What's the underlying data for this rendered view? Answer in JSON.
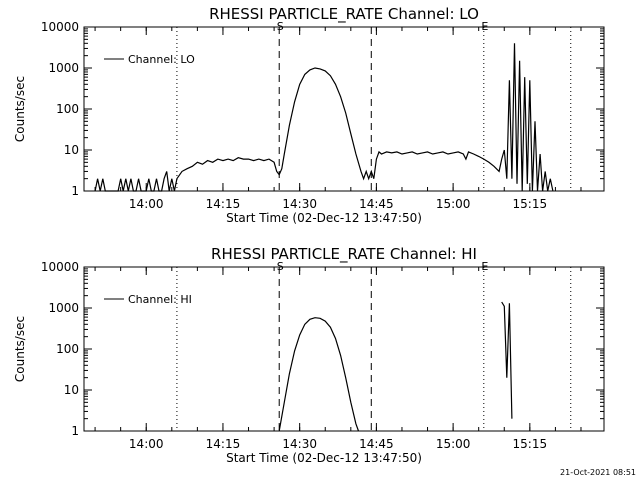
{
  "footer_timestamp": "21-Oct-2021 08:51",
  "chart_data": [
    {
      "type": "line",
      "title": "RHESSI PARTICLE_RATE Channel: LO",
      "xlabel": "Start Time (02-Dec-12 13:47:50)",
      "ylabel": "Counts/sec",
      "yscale": "log",
      "ylim": [
        1,
        10000
      ],
      "xlim": [
        "13:47:50",
        "15:29:30"
      ],
      "x_ticks": [
        "14:00",
        "14:15",
        "14:30",
        "14:45",
        "15:00",
        "15:15"
      ],
      "y_ticks": [
        "1",
        "10",
        "100",
        "1000",
        "10000"
      ],
      "legend": {
        "position": "top-left",
        "entries": [
          "Channel: LO"
        ]
      },
      "markers": [
        {
          "time": "14:06:00",
          "style": "dotted",
          "label": ""
        },
        {
          "time": "14:26:00",
          "style": "dashed",
          "label": "S"
        },
        {
          "time": "14:44:00",
          "style": "dashed",
          "label": ""
        },
        {
          "time": "15:06:00",
          "style": "dotted",
          "label": "E"
        },
        {
          "time": "15:23:00",
          "style": "dotted",
          "label": ""
        }
      ],
      "series": [
        {
          "name": "Channel: LO",
          "points": [
            [
              "13:50:00",
              1
            ],
            [
              "13:50:30",
              2
            ],
            [
              "13:51:00",
              1
            ],
            [
              "13:51:30",
              2
            ],
            [
              "13:52:00",
              1
            ],
            [
              "13:54:30",
              1
            ],
            [
              "13:55:00",
              2
            ],
            [
              "13:55:30",
              1
            ],
            [
              "13:56:00",
              2
            ],
            [
              "13:56:30",
              1
            ],
            [
              "13:57:00",
              2
            ],
            [
              "13:57:30",
              1
            ],
            [
              "13:58:00",
              1
            ],
            [
              "13:58:30",
              2
            ],
            [
              "13:59:00",
              1
            ],
            [
              "14:00:00",
              1
            ],
            [
              "14:00:30",
              2
            ],
            [
              "14:01:00",
              1
            ],
            [
              "14:01:30",
              1
            ],
            [
              "14:02:00",
              2
            ],
            [
              "14:02:30",
              1
            ],
            [
              "14:03:00",
              1
            ],
            [
              "14:03:30",
              2
            ],
            [
              "14:04:00",
              3
            ],
            [
              "14:04:30",
              1
            ],
            [
              "14:05:00",
              2
            ],
            [
              "14:05:30",
              1
            ],
            [
              "14:06:00",
              2
            ],
            [
              "14:07:00",
              3
            ],
            [
              "14:08:00",
              3.5
            ],
            [
              "14:09:00",
              4
            ],
            [
              "14:10:00",
              5
            ],
            [
              "14:11:00",
              4.5
            ],
            [
              "14:12:00",
              5.5
            ],
            [
              "14:13:00",
              5
            ],
            [
              "14:14:00",
              6
            ],
            [
              "14:15:00",
              5.5
            ],
            [
              "14:16:00",
              6
            ],
            [
              "14:17:00",
              5.5
            ],
            [
              "14:18:00",
              6.5
            ],
            [
              "14:19:00",
              6
            ],
            [
              "14:20:00",
              6
            ],
            [
              "14:21:00",
              5.5
            ],
            [
              "14:22:00",
              6
            ],
            [
              "14:23:00",
              5.5
            ],
            [
              "14:24:00",
              6
            ],
            [
              "14:25:00",
              5
            ],
            [
              "14:25:30",
              3
            ],
            [
              "14:26:00",
              2.5
            ],
            [
              "14:26:30",
              3.5
            ],
            [
              "14:27:00",
              8
            ],
            [
              "14:28:00",
              40
            ],
            [
              "14:29:00",
              150
            ],
            [
              "14:30:00",
              400
            ],
            [
              "14:31:00",
              700
            ],
            [
              "14:32:00",
              900
            ],
            [
              "14:33:00",
              1000
            ],
            [
              "14:34:00",
              950
            ],
            [
              "14:35:00",
              850
            ],
            [
              "14:36:00",
              650
            ],
            [
              "14:37:00",
              400
            ],
            [
              "14:38:00",
              200
            ],
            [
              "14:39:00",
              80
            ],
            [
              "14:40:00",
              25
            ],
            [
              "14:41:00",
              8
            ],
            [
              "14:42:00",
              3
            ],
            [
              "14:42:30",
              2
            ],
            [
              "14:43:00",
              3
            ],
            [
              "14:43:30",
              2
            ],
            [
              "14:44:00",
              3
            ],
            [
              "14:44:30",
              2
            ],
            [
              "14:45:00",
              6
            ],
            [
              "14:45:30",
              9
            ],
            [
              "14:46:00",
              8
            ],
            [
              "14:47:00",
              9
            ],
            [
              "14:48:00",
              8.5
            ],
            [
              "14:49:00",
              9
            ],
            [
              "14:50:00",
              8
            ],
            [
              "14:51:00",
              8.5
            ],
            [
              "14:52:00",
              9
            ],
            [
              "14:53:00",
              8
            ],
            [
              "14:54:00",
              8.5
            ],
            [
              "14:55:00",
              9
            ],
            [
              "14:56:00",
              8
            ],
            [
              "14:57:00",
              8.5
            ],
            [
              "14:58:00",
              9
            ],
            [
              "14:59:00",
              8
            ],
            [
              "15:00:00",
              8.5
            ],
            [
              "15:01:00",
              9
            ],
            [
              "15:02:00",
              8
            ],
            [
              "15:02:30",
              6
            ],
            [
              "15:03:00",
              9
            ],
            [
              "15:04:00",
              8
            ],
            [
              "15:05:00",
              7
            ],
            [
              "15:06:00",
              6
            ],
            [
              "15:07:00",
              5
            ],
            [
              "15:08:00",
              4
            ],
            [
              "15:09:00",
              3
            ],
            [
              "15:09:30",
              6
            ],
            [
              "15:10:00",
              10
            ],
            [
              "15:10:30",
              2
            ],
            [
              "15:11:00",
              500
            ],
            [
              "15:11:30",
              2
            ],
            [
              "15:12:00",
              4000
            ],
            [
              "15:12:30",
              1.5
            ],
            [
              "15:13:00",
              1500
            ],
            [
              "15:13:30",
              1
            ],
            [
              "15:14:00",
              600
            ],
            [
              "15:14:30",
              1.5
            ],
            [
              "15:15:00",
              500
            ],
            [
              "15:15:30",
              1
            ],
            [
              "15:16:00",
              50
            ],
            [
              "15:16:30",
              1
            ],
            [
              "15:17:00",
              8
            ],
            [
              "15:17:30",
              1
            ],
            [
              "15:18:00",
              3
            ],
            [
              "15:18:30",
              1
            ],
            [
              "15:19:00",
              2
            ],
            [
              "15:19:30",
              1
            ]
          ]
        }
      ]
    },
    {
      "type": "line",
      "title": "RHESSI PARTICLE_RATE Channel: HI",
      "xlabel": "Start Time (02-Dec-12 13:47:50)",
      "ylabel": "Counts/sec",
      "yscale": "log",
      "ylim": [
        1,
        10000
      ],
      "xlim": [
        "13:47:50",
        "15:29:30"
      ],
      "x_ticks": [
        "14:00",
        "14:15",
        "14:30",
        "14:45",
        "15:00",
        "15:15"
      ],
      "y_ticks": [
        "1",
        "10",
        "100",
        "1000",
        "10000"
      ],
      "legend": {
        "position": "top-left",
        "entries": [
          "Channel: HI"
        ]
      },
      "markers": [
        {
          "time": "14:06:00",
          "style": "dotted",
          "label": ""
        },
        {
          "time": "14:26:00",
          "style": "dashed",
          "label": "S"
        },
        {
          "time": "14:44:00",
          "style": "dashed",
          "label": ""
        },
        {
          "time": "15:06:00",
          "style": "dotted",
          "label": "E"
        },
        {
          "time": "15:23:00",
          "style": "dotted",
          "label": ""
        }
      ],
      "series": [
        {
          "name": "Channel: HI",
          "points": [
            [
              "14:26:00",
              1
            ],
            [
              "14:27:00",
              5
            ],
            [
              "14:28:00",
              25
            ],
            [
              "14:29:00",
              90
            ],
            [
              "14:30:00",
              220
            ],
            [
              "14:31:00",
              400
            ],
            [
              "14:32:00",
              530
            ],
            [
              "14:33:00",
              580
            ],
            [
              "14:34:00",
              560
            ],
            [
              "14:35:00",
              480
            ],
            [
              "14:36:00",
              340
            ],
            [
              "14:37:00",
              180
            ],
            [
              "14:38:00",
              70
            ],
            [
              "14:39:00",
              20
            ],
            [
              "14:40:00",
              5
            ],
            [
              "14:41:00",
              1.5
            ],
            [
              "14:41:30",
              1
            ]
          ]
        },
        {
          "name": "Channel: HI",
          "points": [
            [
              "15:09:30",
              1400
            ],
            [
              "15:10:00",
              1100
            ],
            [
              "15:10:30",
              20
            ],
            [
              "15:11:00",
              1300
            ],
            [
              "15:11:30",
              2
            ]
          ]
        }
      ]
    }
  ]
}
